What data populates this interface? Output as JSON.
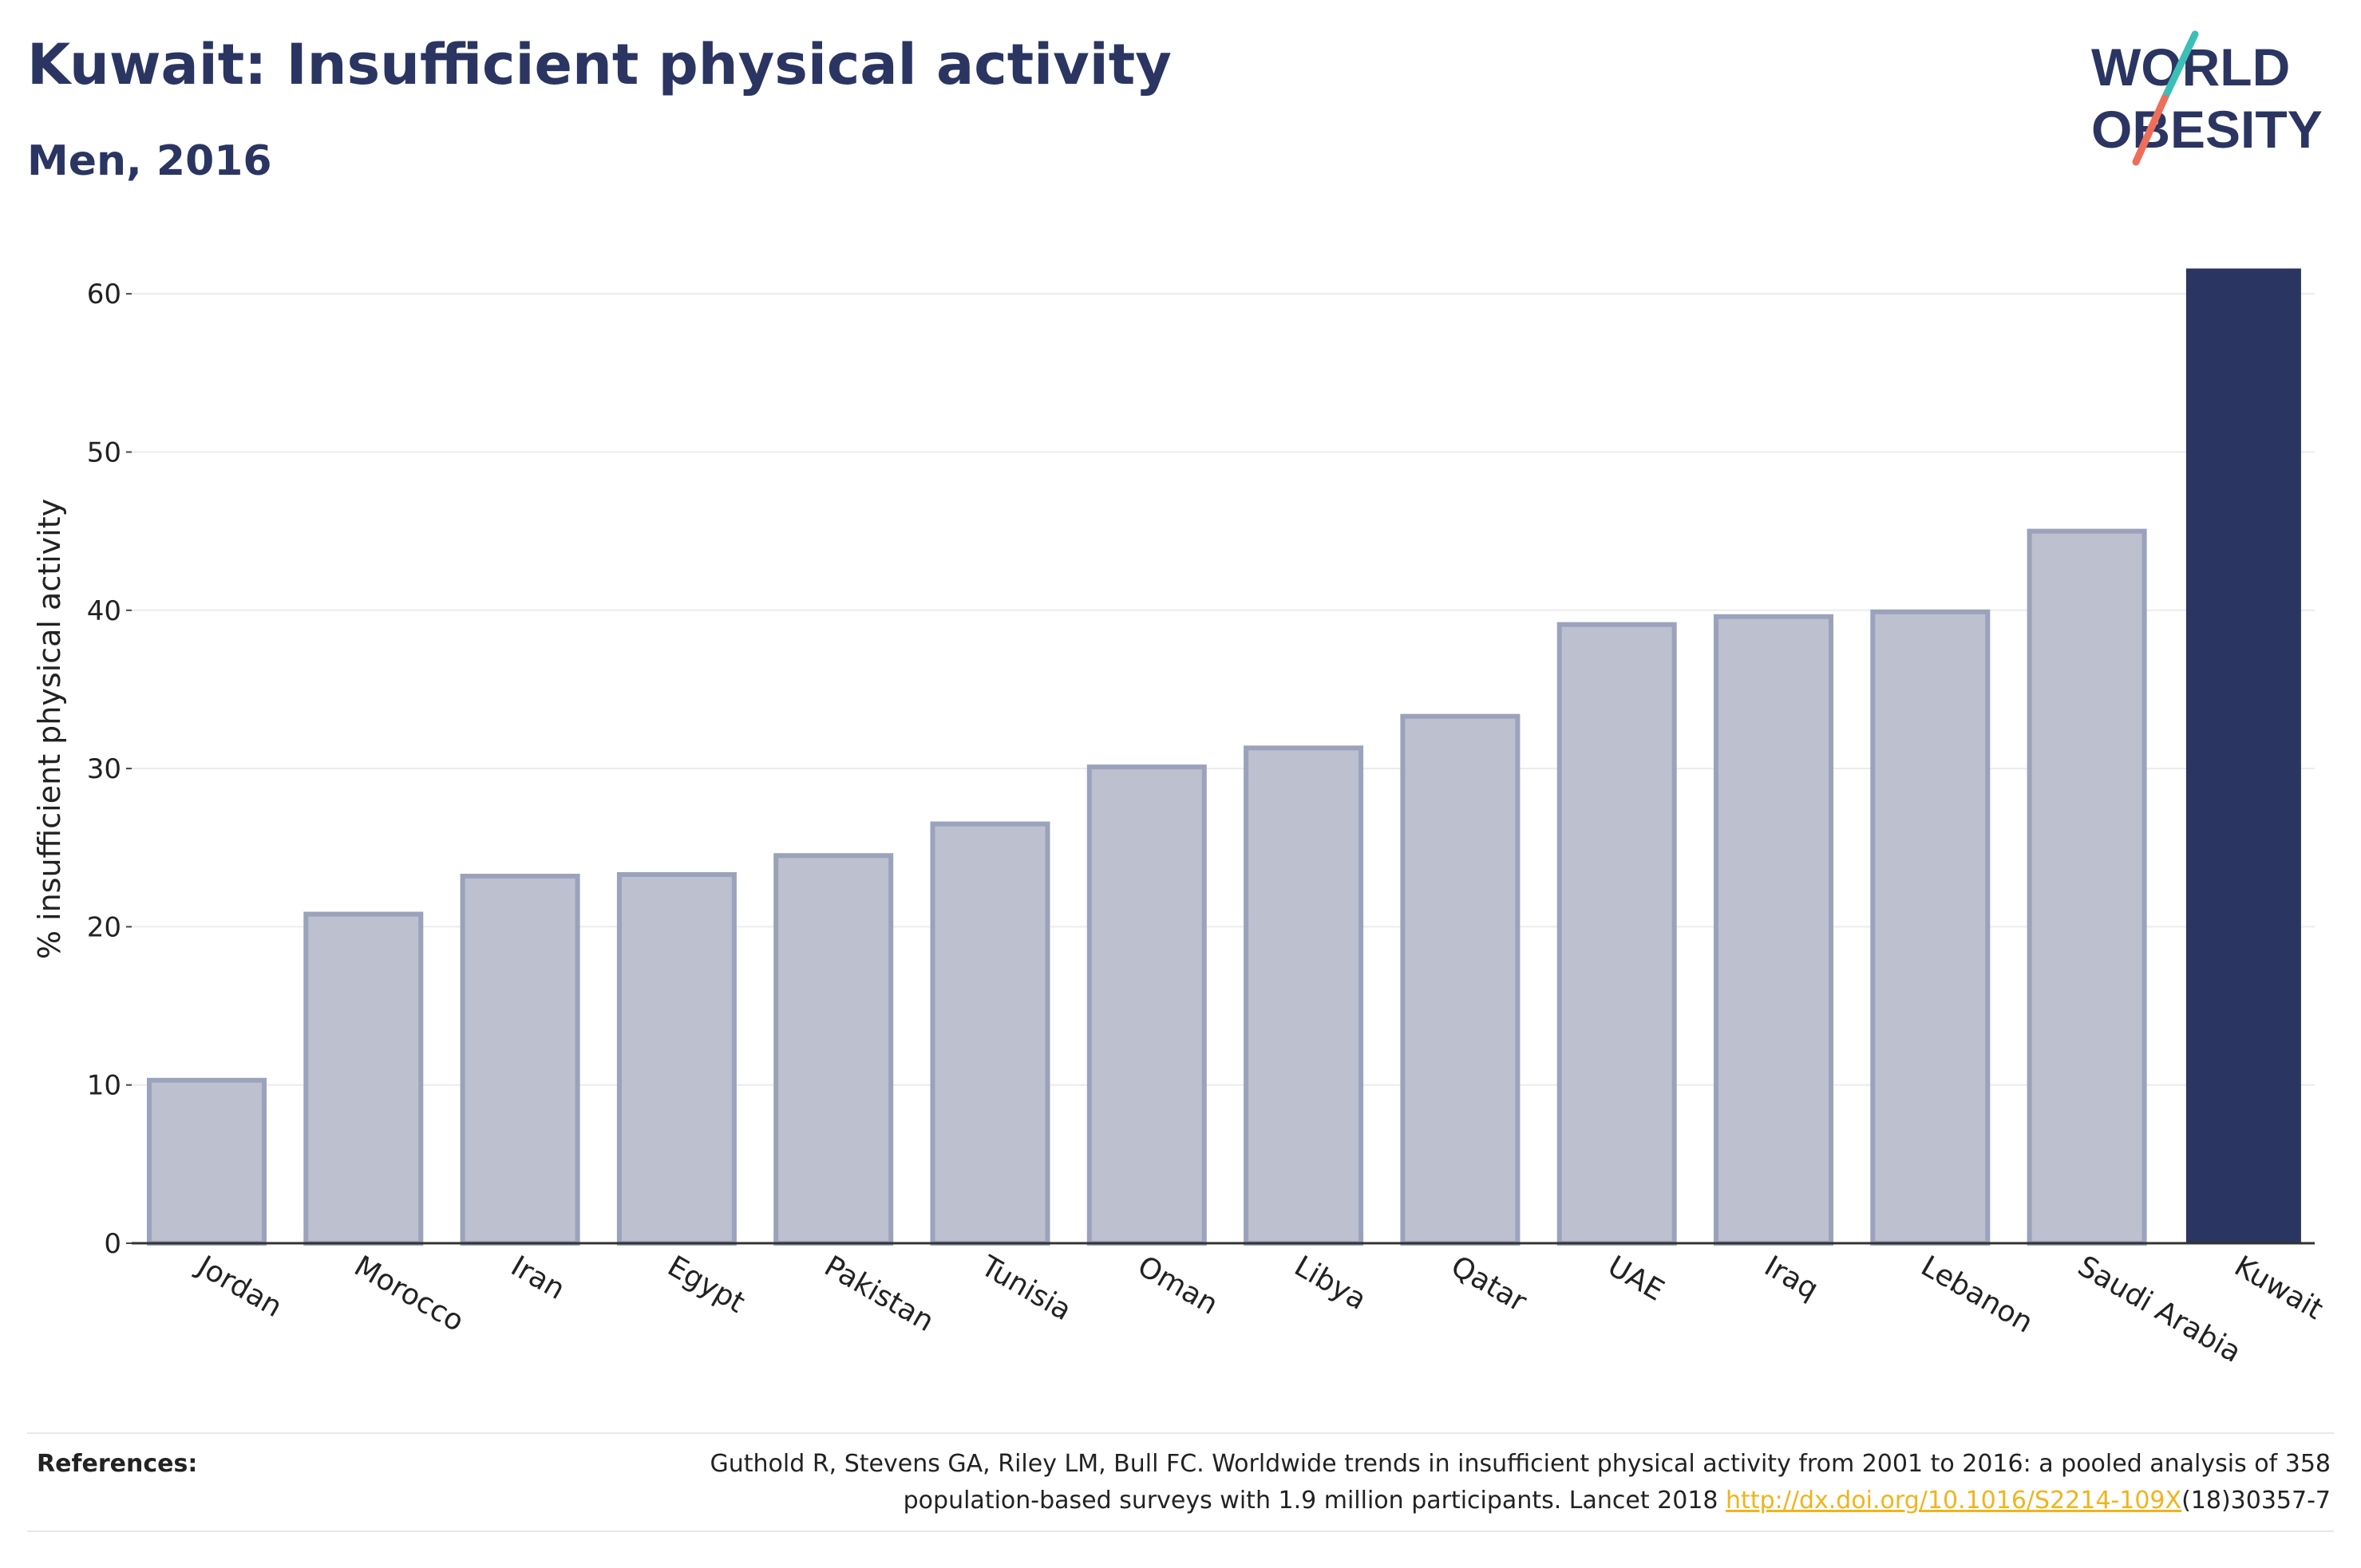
{
  "header": {
    "title": "Kuwait: Insufficient physical activity",
    "subtitle": "Men, 2016"
  },
  "logo": {
    "line1": "WORLD",
    "line2": "OBESITY",
    "accent_teal": "#3bbfb6",
    "accent_coral": "#ee6e5a"
  },
  "colors": {
    "highlight_bar": "#2b3562",
    "other_bar_fill": "#bcc0cf",
    "other_bar_stroke": "#9ba2bb",
    "text": "#2b3562",
    "link": "#f0b41c"
  },
  "chart_data": {
    "type": "bar",
    "title": "Kuwait: Insufficient physical activity",
    "subtitle": "Men, 2016",
    "xlabel": "",
    "ylabel": "% insufficient physical activity",
    "categories": [
      "Jordan",
      "Morocco",
      "Iran",
      "Egypt",
      "Pakistan",
      "Tunisia",
      "Oman",
      "Libya",
      "Qatar",
      "UAE",
      "Iraq",
      "Lebanon",
      "Saudi Arabia",
      "Kuwait"
    ],
    "values": [
      10.3,
      20.8,
      23.2,
      23.3,
      24.5,
      26.5,
      30.1,
      31.3,
      33.3,
      39.1,
      39.6,
      39.9,
      45.0,
      61.6
    ],
    "highlight": "Kuwait",
    "ylim": [
      0,
      65
    ],
    "yticks": [
      0,
      10,
      20,
      30,
      40,
      50,
      60
    ],
    "grid": true
  },
  "references": {
    "label": "References:",
    "text_before_link": "Guthold R, Stevens GA, Riley LM, Bull FC. Worldwide trends in insufficient physical activity from 2001 to 2016: a pooled analysis of 358 population-based surveys with 1.9 million participants. Lancet 2018 ",
    "link_text": "http://dx.doi.org/10.1016/S2214-109X",
    "text_after_link": "(18)30357-7"
  }
}
